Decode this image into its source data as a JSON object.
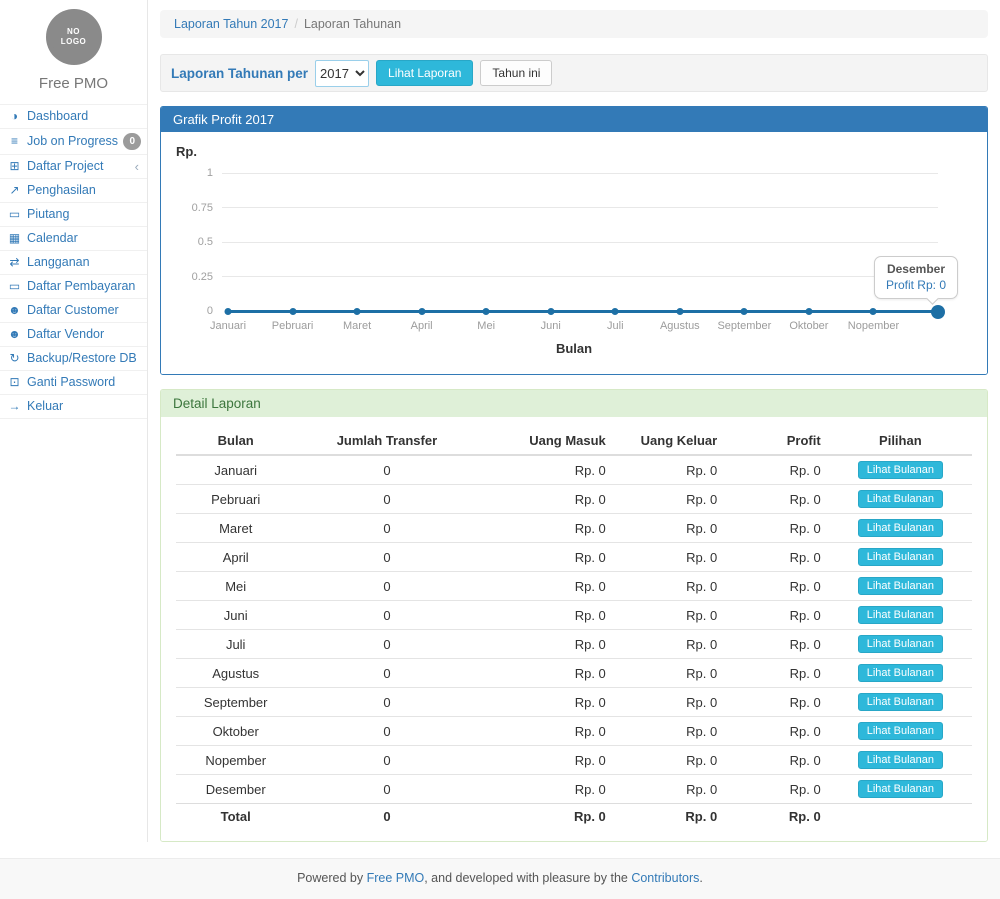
{
  "sidebar": {
    "logo_text_line1": "NO",
    "logo_text_line2": "LOGO",
    "brand": "Free PMO",
    "items": [
      {
        "name": "dashboard",
        "icon": "dashboard-icon",
        "glyph": "◑",
        "label": "Dashboard"
      },
      {
        "name": "job-on-progress",
        "icon": "tasks-icon",
        "glyph": "≡",
        "label": "Job on Progress",
        "badge": "0"
      },
      {
        "name": "daftar-project",
        "icon": "table-icon",
        "glyph": "⊞",
        "label": "Daftar Project",
        "chevron": "‹"
      },
      {
        "name": "penghasilan",
        "icon": "line-chart-icon",
        "glyph": "↗",
        "label": "Penghasilan"
      },
      {
        "name": "piutang",
        "icon": "money-icon",
        "glyph": "▭",
        "label": "Piutang"
      },
      {
        "name": "calendar",
        "icon": "calendar-icon",
        "glyph": "▦",
        "label": "Calendar"
      },
      {
        "name": "langganan",
        "icon": "exchange-icon",
        "glyph": "⇄",
        "label": "Langganan"
      },
      {
        "name": "daftar-pembayaran",
        "icon": "money-icon",
        "glyph": "▭",
        "label": "Daftar Pembayaran"
      },
      {
        "name": "daftar-customer",
        "icon": "users-icon",
        "glyph": "☻",
        "label": "Daftar Customer"
      },
      {
        "name": "daftar-vendor",
        "icon": "users-icon",
        "glyph": "☻",
        "label": "Daftar Vendor"
      },
      {
        "name": "backup-restore-db",
        "icon": "refresh-icon",
        "glyph": "↻",
        "label": "Backup/Restore DB"
      },
      {
        "name": "ganti-password",
        "icon": "lock-icon",
        "glyph": "⊡",
        "label": "Ganti Password"
      },
      {
        "name": "keluar",
        "icon": "sign-out-icon",
        "glyph": "→",
        "label": "Keluar"
      }
    ]
  },
  "breadcrumb": {
    "link": "Laporan Tahun 2017",
    "separator": "/",
    "current": "Laporan Tahunan"
  },
  "filter": {
    "label": "Laporan Tahunan per",
    "year_selected": "2017",
    "year_options": [
      "2017"
    ],
    "view_button": "Lihat Laporan",
    "this_year_button": "Tahun ini"
  },
  "chart_panel": {
    "title": "Grafik Profit 2017",
    "y_unit": "Rp.",
    "x_title": "Bulan",
    "tooltip": {
      "title": "Desember",
      "value": "Profit Rp: 0"
    }
  },
  "chart_data": {
    "type": "line",
    "title": "Grafik Profit 2017",
    "xlabel": "Bulan",
    "ylabel": "Rp.",
    "x": [
      "Januari",
      "Pebruari",
      "Maret",
      "April",
      "Mei",
      "Juni",
      "Juli",
      "Agustus",
      "September",
      "Oktober",
      "Nopember",
      "Desember"
    ],
    "series": [
      {
        "name": "Profit",
        "values": [
          0,
          0,
          0,
          0,
          0,
          0,
          0,
          0,
          0,
          0,
          0,
          0
        ]
      }
    ],
    "ylim": [
      0,
      1
    ],
    "yticks": [
      0,
      0.25,
      0.5,
      0.75,
      1
    ],
    "grid": true,
    "legend": false,
    "x_labels_hidden": [
      "Desember"
    ],
    "line_color": "#1d6fa5"
  },
  "detail": {
    "title": "Detail Laporan",
    "columns": [
      "Bulan",
      "Jumlah Transfer",
      "Uang Masuk",
      "Uang Keluar",
      "Profit",
      "Pilihan"
    ],
    "action_label": "Lihat Bulanan",
    "rows": [
      {
        "bulan": "Januari",
        "jumlah_transfer": "0",
        "uang_masuk": "Rp. 0",
        "uang_keluar": "Rp. 0",
        "profit": "Rp. 0"
      },
      {
        "bulan": "Pebruari",
        "jumlah_transfer": "0",
        "uang_masuk": "Rp. 0",
        "uang_keluar": "Rp. 0",
        "profit": "Rp. 0"
      },
      {
        "bulan": "Maret",
        "jumlah_transfer": "0",
        "uang_masuk": "Rp. 0",
        "uang_keluar": "Rp. 0",
        "profit": "Rp. 0"
      },
      {
        "bulan": "April",
        "jumlah_transfer": "0",
        "uang_masuk": "Rp. 0",
        "uang_keluar": "Rp. 0",
        "profit": "Rp. 0"
      },
      {
        "bulan": "Mei",
        "jumlah_transfer": "0",
        "uang_masuk": "Rp. 0",
        "uang_keluar": "Rp. 0",
        "profit": "Rp. 0"
      },
      {
        "bulan": "Juni",
        "jumlah_transfer": "0",
        "uang_masuk": "Rp. 0",
        "uang_keluar": "Rp. 0",
        "profit": "Rp. 0"
      },
      {
        "bulan": "Juli",
        "jumlah_transfer": "0",
        "uang_masuk": "Rp. 0",
        "uang_keluar": "Rp. 0",
        "profit": "Rp. 0"
      },
      {
        "bulan": "Agustus",
        "jumlah_transfer": "0",
        "uang_masuk": "Rp. 0",
        "uang_keluar": "Rp. 0",
        "profit": "Rp. 0"
      },
      {
        "bulan": "September",
        "jumlah_transfer": "0",
        "uang_masuk": "Rp. 0",
        "uang_keluar": "Rp. 0",
        "profit": "Rp. 0"
      },
      {
        "bulan": "Oktober",
        "jumlah_transfer": "0",
        "uang_masuk": "Rp. 0",
        "uang_keluar": "Rp. 0",
        "profit": "Rp. 0"
      },
      {
        "bulan": "Nopember",
        "jumlah_transfer": "0",
        "uang_masuk": "Rp. 0",
        "uang_keluar": "Rp. 0",
        "profit": "Rp. 0"
      },
      {
        "bulan": "Desember",
        "jumlah_transfer": "0",
        "uang_masuk": "Rp. 0",
        "uang_keluar": "Rp. 0",
        "profit": "Rp. 0"
      }
    ],
    "total": {
      "bulan": "Total",
      "jumlah_transfer": "0",
      "uang_masuk": "Rp. 0",
      "uang_keluar": "Rp. 0",
      "profit": "Rp. 0"
    }
  },
  "footer": {
    "prefix": "Powered by ",
    "link1": "Free PMO",
    "middle": ", and developed with pleasure by the ",
    "link2": "Contributors",
    "suffix": "."
  },
  "colors": {
    "primary": "#337ab7",
    "info_button": "#2eb8da",
    "success_heading_bg": "#dff0d8",
    "success_heading_text": "#3c763d",
    "chart_line": "#1d6fa5",
    "badge": "#9b9b9b"
  }
}
